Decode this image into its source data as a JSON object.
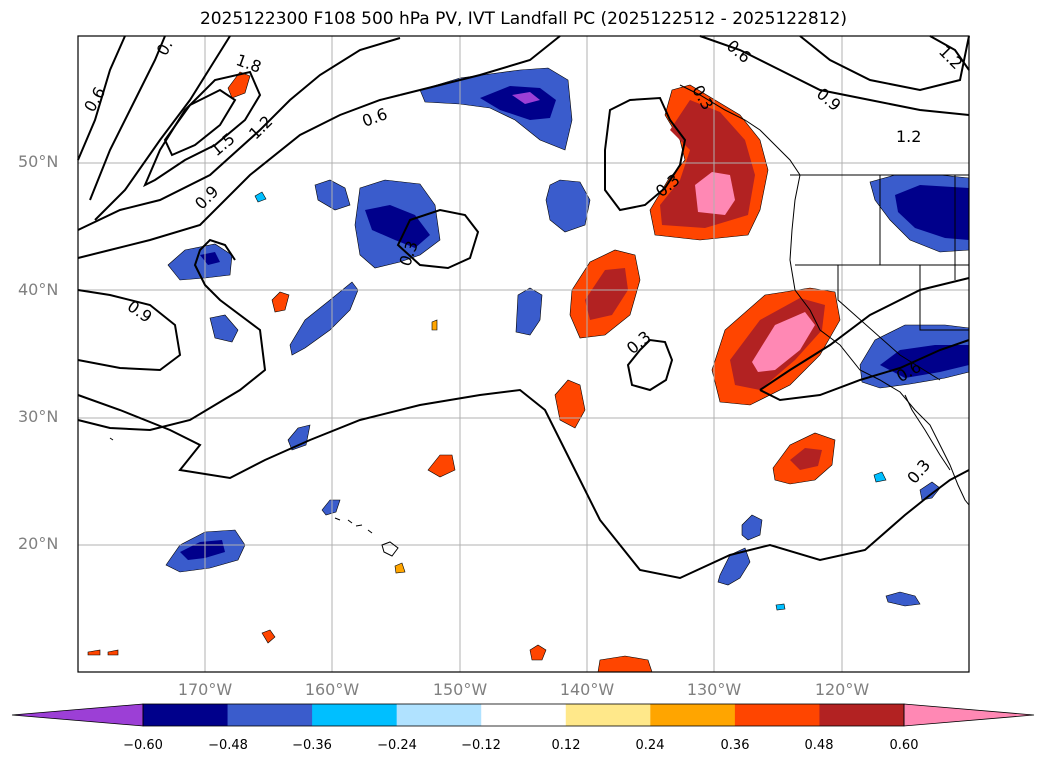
{
  "title": "2025122300 F108 500 hPa PV, IVT Landfall PC (2025122512 - 2025122812)",
  "map": {
    "lat_ticks": [
      "50°N",
      "40°N",
      "30°N",
      "20°N"
    ],
    "lon_ticks": [
      "170°W",
      "160°W",
      "150°W",
      "140°W",
      "130°W",
      "120°W"
    ],
    "contour_labels": [
      "0.",
      "1.8",
      "0.6",
      "1.5",
      "1.2",
      "0.6",
      "0.9",
      "0.3",
      "0.9",
      "0.3",
      "0.3",
      "0.6",
      "0.9",
      "1.2",
      "1.2",
      "0.6",
      "0.3",
      "0.3"
    ]
  },
  "colorbar": {
    "ticks": [
      "−0.60",
      "−0.48",
      "−0.36",
      "−0.24",
      "−0.12",
      "0.12",
      "0.24",
      "0.36",
      "0.48",
      "0.60"
    ],
    "colors": [
      "#9c3fd6",
      "#00008b",
      "#3a5ccc",
      "#00bfff",
      "#b0e2ff",
      "#ffffff",
      "#ffe88a",
      "#ffa500",
      "#ff4500",
      "#b22222",
      "#ff88b4",
      "#ff88b4"
    ]
  }
}
